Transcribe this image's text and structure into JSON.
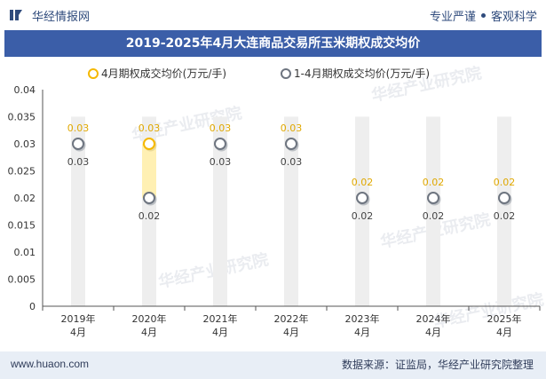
{
  "header": {
    "brand": "华经情报网",
    "tagline_left": "专业严谨",
    "tagline_right": "客观科学"
  },
  "title": "2019-2025年4月大连商品交易所玉米期权成交均价",
  "footer": {
    "url": "www.huaon.com",
    "source": "数据来源：证监局，华经产业研究院整理"
  },
  "watermark": "华经产业研究院",
  "colors": {
    "title_bg": "#3b5ea8",
    "series_april": "#f5b800",
    "series_cumulative": "#6e7580",
    "band": "#eeeeee",
    "highlight_band": "#fff0b3"
  },
  "chart_data": {
    "type": "line",
    "categories": [
      "2019年\n4月",
      "2020年\n4月",
      "2021年\n4月",
      "2022年\n4月",
      "2023年\n4月",
      "2024年\n4月",
      "2025年\n4月"
    ],
    "ylim": [
      0,
      0.04
    ],
    "yticks": [
      "0",
      "0.005",
      "0.01",
      "0.015",
      "0.02",
      "0.025",
      "0.03",
      "0.035",
      "0.04"
    ],
    "legend_position": "top-center",
    "series": [
      {
        "name": "4月期权成交均价(万元/手)",
        "values": [
          0.03,
          0.03,
          0.03,
          0.03,
          0.02,
          0.02,
          0.02
        ],
        "labels": [
          "0.03",
          "0.03",
          "0.03",
          "0.03",
          "0.02",
          "0.02",
          "0.02"
        ]
      },
      {
        "name": "1-4月期权成交均价(万元/手)",
        "values": [
          0.03,
          0.02,
          0.03,
          0.03,
          0.02,
          0.02,
          0.02
        ],
        "labels": [
          "0.03",
          "0.02",
          "0.03",
          "0.03",
          "0.02",
          "0.02",
          "0.02"
        ]
      }
    ]
  }
}
